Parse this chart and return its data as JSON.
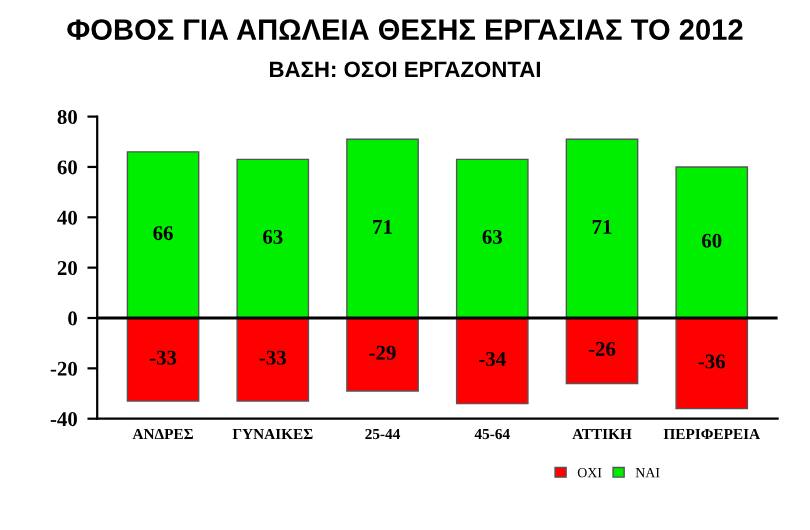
{
  "chart_data": {
    "type": "bar",
    "title": "ΦΟΒΟΣ ΓΙΑ ΑΠΩΛΕΙΑ ΘΕΣΗΣ ΕΡΓΑΣΙΑΣ ΤΟ 2012",
    "subtitle": "ΒΑΣΗ: ΟΣΟΙ ΕΡΓΑΖΟΝΤΑΙ",
    "categories": [
      "ΑΝΔΡΕΣ",
      "ΓΥΝΑΙΚΕΣ",
      "25-44",
      "45-64",
      "ΑΤΤΙΚΗ",
      "ΠΕΡΙΦΕΡΕΙΑ"
    ],
    "series": [
      {
        "name": "ΟΧΙ",
        "color": "#ff0000",
        "values": [
          -33,
          -33,
          -29,
          -34,
          -26,
          -36
        ]
      },
      {
        "name": "ΝΑΙ",
        "color": "#00ee00",
        "values": [
          66,
          63,
          71,
          63,
          71,
          60
        ]
      }
    ],
    "stacked": true,
    "data_labels": true,
    "ylim": [
      -40,
      80
    ],
    "yticks": [
      -40,
      -20,
      0,
      20,
      40,
      60,
      80
    ],
    "ref_lines": [
      {
        "axis": "y",
        "value": 0,
        "color": "#000000"
      }
    ],
    "legend": "bottom"
  }
}
